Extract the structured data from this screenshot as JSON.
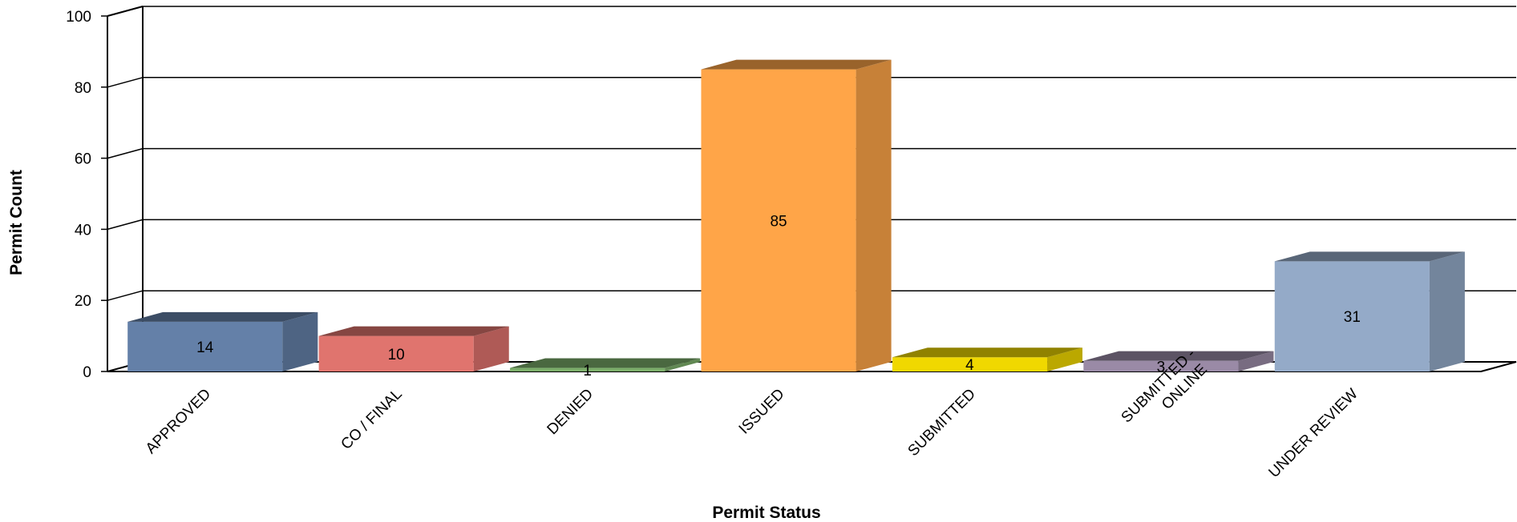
{
  "chart_data": {
    "type": "bar",
    "title": "",
    "xlabel": "Permit Status",
    "ylabel": "Permit Count",
    "ylim": [
      0,
      100
    ],
    "yticks": [
      0,
      20,
      40,
      60,
      80,
      100
    ],
    "grid": true,
    "categories": [
      "APPROVED",
      "CO / FINAL",
      "DENIED",
      "ISSUED",
      "SUBMITTED",
      "SUBMITTED - ONLINE",
      "UNDER REVIEW"
    ],
    "values": [
      14,
      10,
      1,
      85,
      4,
      3,
      31
    ],
    "data_labels": [
      "14",
      "10",
      "1",
      "85",
      "4",
      "3",
      "31"
    ],
    "colors": [
      "#6480a8",
      "#e0746e",
      "#7cae6a",
      "#ffa548",
      "#f0d800",
      "#9a8aa6",
      "#94aac8"
    ]
  }
}
